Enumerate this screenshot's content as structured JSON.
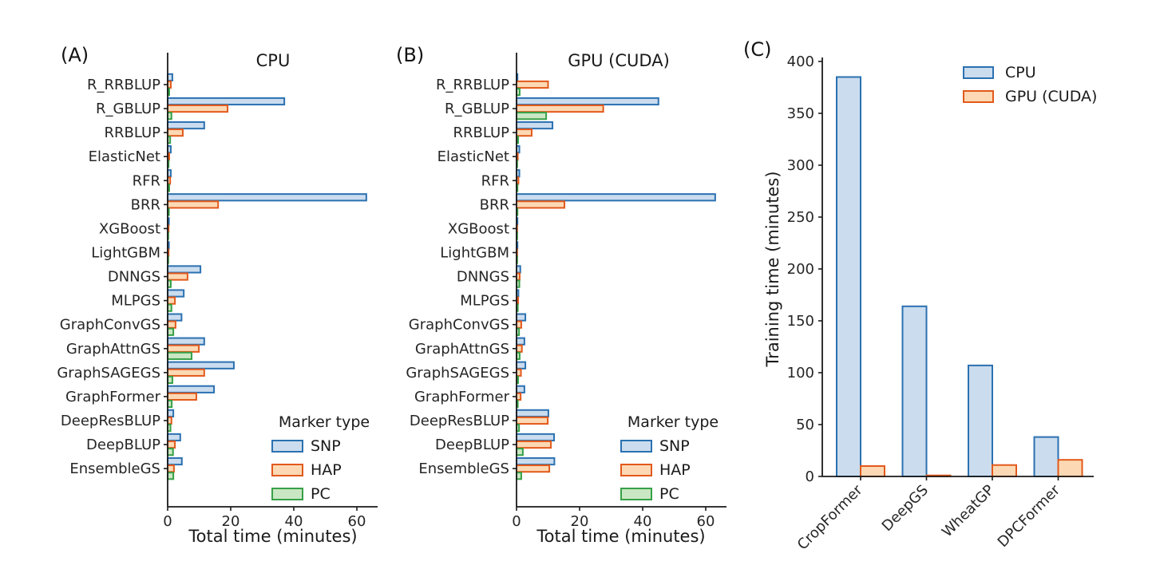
{
  "panels": {
    "a_letter": "(A)",
    "b_letter": "(B)",
    "c_letter": "(C)"
  },
  "colors": {
    "axis": "#1a1a1a",
    "tick_text": "#262626"
  },
  "chart_data": [
    {
      "id": "A",
      "type": "bar",
      "orientation": "horizontal",
      "title": "CPU",
      "xlabel": "Total time (minutes)",
      "xlim": [
        0,
        66
      ],
      "xticks": [
        0,
        20,
        40,
        60
      ],
      "grid": false,
      "legend": {
        "title": "Marker type",
        "position": "lower-right-inside"
      },
      "categories": [
        "R_RRBLUP",
        "R_GBLUP",
        "RRBLUP",
        "ElasticNet",
        "RFR",
        "BRR",
        "XGBoost",
        "LightGBM",
        "DNNGS",
        "MLPGS",
        "GraphConvGS",
        "GraphAttnGS",
        "GraphSAGEGS",
        "GraphFormer",
        "DeepResBLUP",
        "DeepBLUP",
        "EnsembleGS"
      ],
      "series": [
        {
          "name": "SNP",
          "fill": "#cadcee",
          "edge": "#2b71b1",
          "values": [
            1.5,
            37,
            11.6,
            1.0,
            1.0,
            63,
            0.4,
            0.4,
            10.4,
            5.1,
            4.4,
            11.6,
            21,
            14.7,
            1.8,
            4.0,
            4.5
          ]
        },
        {
          "name": "HAP",
          "fill": "#fcd9b4",
          "edge": "#e2591b",
          "values": [
            1.0,
            19,
            4.8,
            0.5,
            0.8,
            16,
            0.3,
            0.3,
            6.3,
            2.3,
            2.5,
            9.9,
            11.6,
            9.1,
            1.2,
            2.3,
            2.0
          ]
        },
        {
          "name": "PC",
          "fill": "#c9e7c3",
          "edge": "#37a047",
          "values": [
            0.5,
            1.2,
            0.8,
            0.3,
            0.5,
            0.4,
            0.2,
            0.2,
            1.0,
            1.2,
            1.8,
            7.6,
            1.5,
            1.3,
            0.9,
            1.7,
            1.8
          ]
        }
      ]
    },
    {
      "id": "B",
      "type": "bar",
      "orientation": "horizontal",
      "title": "GPU (CUDA)",
      "xlabel": "Total time (minutes)",
      "xlim": [
        0,
        66
      ],
      "xticks": [
        0,
        20,
        40,
        60
      ],
      "grid": false,
      "legend": {
        "title": "Marker type",
        "position": "lower-right-inside"
      },
      "categories": [
        "R_RRBLUP",
        "R_GBLUP",
        "RRBLUP",
        "ElasticNet",
        "RFR",
        "BRR",
        "XGBoost",
        "LightGBM",
        "DNNGS",
        "MLPGS",
        "GraphConvGS",
        "GraphAttnGS",
        "GraphSAGEGS",
        "GraphFormer",
        "DeepResBLUP",
        "DeepBLUP",
        "EnsembleGS"
      ],
      "series": [
        {
          "name": "SNP",
          "fill": "#cadcee",
          "edge": "#2b71b1",
          "values": [
            0.3,
            45,
            11.4,
            0.9,
            0.9,
            63,
            0.3,
            0.3,
            1.2,
            0.6,
            2.8,
            2.5,
            2.8,
            2.5,
            10.1,
            11.9,
            12.0
          ]
        },
        {
          "name": "HAP",
          "fill": "#fcd9b4",
          "edge": "#e2591b",
          "values": [
            10,
            27.5,
            4.8,
            0.4,
            0.6,
            15.2,
            0.2,
            0.2,
            1.0,
            0.5,
            1.5,
            1.7,
            1.4,
            1.3,
            9.9,
            10.9,
            10.4
          ]
        },
        {
          "name": "PC",
          "fill": "#c9e7c3",
          "edge": "#37a047",
          "values": [
            1.0,
            9.4,
            0.5,
            0.2,
            0.3,
            0.3,
            0.2,
            0.2,
            0.9,
            0.4,
            0.8,
            1.0,
            0.5,
            0.4,
            0.8,
            2.0,
            1.5
          ]
        }
      ]
    },
    {
      "id": "C",
      "type": "bar",
      "orientation": "vertical",
      "ylabel": "Training time (minutes)",
      "ylim": [
        0,
        400
      ],
      "yticks": [
        0,
        50,
        100,
        150,
        200,
        250,
        300,
        350,
        400
      ],
      "grid": false,
      "legend": {
        "position": "upper-right"
      },
      "categories": [
        "CropFormer",
        "DeepGS",
        "WheatGP",
        "DPCFormer"
      ],
      "series": [
        {
          "name": "CPU",
          "fill": "#cadcee",
          "edge": "#2b71b1",
          "values": [
            385,
            164,
            107,
            38
          ]
        },
        {
          "name": "GPU (CUDA)",
          "fill": "#fcd9b4",
          "edge": "#e2591b",
          "values": [
            10,
            1,
            11,
            16
          ]
        }
      ]
    }
  ]
}
